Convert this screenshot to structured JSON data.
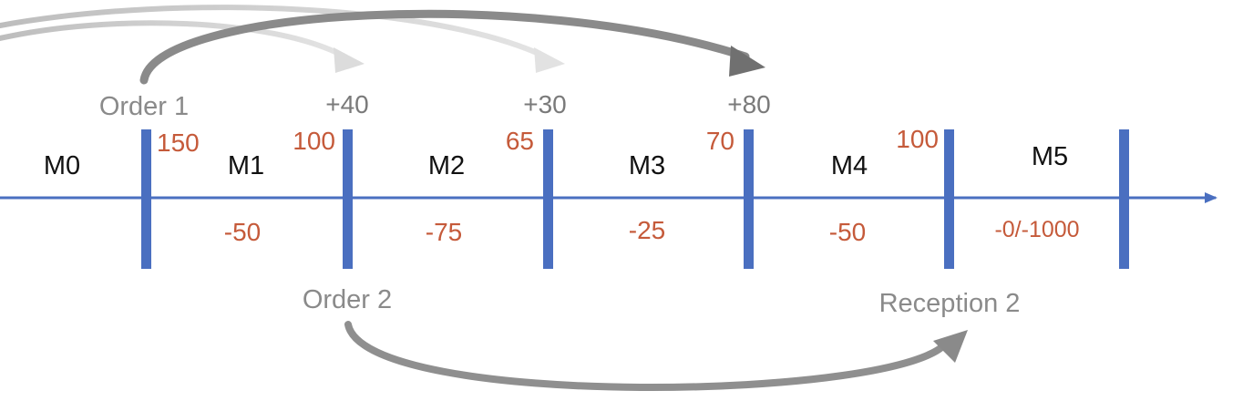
{
  "periods": [
    "M0",
    "M1",
    "M2",
    "M3",
    "M4",
    "M5"
  ],
  "stock_levels": [
    "150",
    "100",
    "65",
    "70",
    "100"
  ],
  "consumption": [
    "-50",
    "-75",
    "-25",
    "-50",
    "-0/-1000"
  ],
  "receptions": [
    "+40",
    "+30",
    "+80"
  ],
  "events": {
    "order1": "Order 1",
    "order2": "Order 2",
    "reception2": "Reception 2"
  },
  "colors": {
    "timeline": "#4a6fc0",
    "stock_text": "#c55a3a",
    "gain_text": "#7a7a7a",
    "event_text": "#8a8a8a",
    "arrow_dark": "#8a8a8a",
    "arrow_light": "#cfcfcf"
  }
}
